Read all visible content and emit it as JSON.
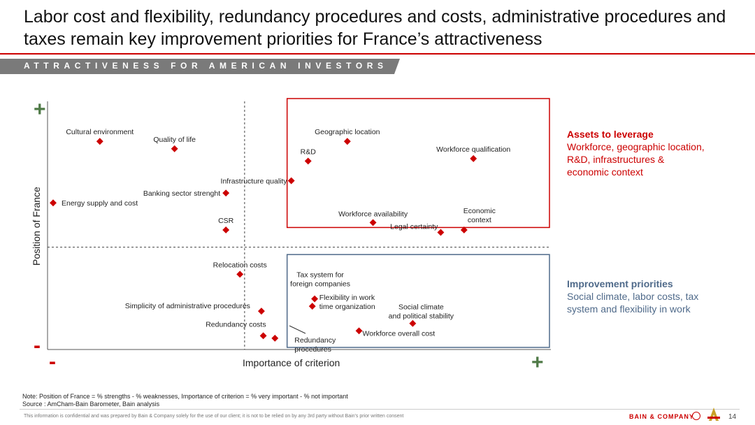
{
  "slide": {
    "title": "Labor cost and flexibility, redundancy procedures and costs, administrative procedures and taxes remain key improvement priorities for France’s attractiveness",
    "banner": "ATTRACTIVENESS FOR AMERICAN INVESTORS",
    "page_number": "14"
  },
  "axes": {
    "y_label": "Position of France",
    "x_label": "Importance of criterion",
    "y_plus": "+",
    "y_minus": "-",
    "x_minus": "-",
    "x_plus": "+"
  },
  "legend": {
    "assets_title": "Assets to leverage",
    "assets_body": "Workforce, geographic location, R&D, infrastructures & economic context",
    "improvement_title": "Improvement priorities",
    "improvement_body": "Social climate, labor costs, tax system and flexibility in work"
  },
  "notes": {
    "note": "Note: Position of France = % strengths - % weaknesses, Importance of criterion = % very important - % not important",
    "source": "Source : AmCham-Bain Barometer, Bain analysis"
  },
  "footer": {
    "confidential": "This information is confidential and was prepared by Bain & Company solely for the use of our client; it is not to be relied on by any 3rd party without Bain's prior written consent",
    "brand": "BAIN & COMPANY"
  },
  "colors": {
    "accent_red": "#cc0000",
    "assets_box": "#cc0000",
    "improvement_box": "#4f6a8a",
    "plus_green": "#4f7a47",
    "banner_gray": "#7a7a7a"
  },
  "chart_data": {
    "type": "scatter",
    "xlabel": "Importance of criterion",
    "ylabel": "Position of France",
    "xlim": [
      0,
      100
    ],
    "ylim": [
      0,
      100
    ],
    "x_divider": 41,
    "y_divider": 45,
    "grid": false,
    "quadrants": [
      {
        "name": "assets",
        "x": [
          51,
          100
        ],
        "y": [
          53,
          100
        ]
      },
      {
        "name": "improvement",
        "x": [
          51,
          100
        ],
        "y": [
          0,
          42
        ]
      }
    ],
    "points": [
      {
        "label": "Cultural environment",
        "x": 10,
        "y": 88
      },
      {
        "label": "Quality of life",
        "x": 26,
        "y": 85
      },
      {
        "label": "Geographic location",
        "x": 63,
        "y": 88
      },
      {
        "label": "R&D",
        "x": 54.6,
        "y": 80
      },
      {
        "label": "Workforce qualification",
        "x": 90,
        "y": 81
      },
      {
        "label": "Infrastructure quality",
        "x": 51,
        "y": 72
      },
      {
        "label": "Banking sector strenght",
        "x": 37,
        "y": 67
      },
      {
        "label": "Energy supply and cost",
        "x": 0,
        "y": 63
      },
      {
        "label": "Workforce availability",
        "x": 68.5,
        "y": 55
      },
      {
        "label": "CSR",
        "x": 37,
        "y": 52
      },
      {
        "label": "Legal certainty",
        "x": 83,
        "y": 51
      },
      {
        "label": "Economic context",
        "x": 88,
        "y": 52
      },
      {
        "label": "Relocation costs",
        "x": 40,
        "y": 34
      },
      {
        "label": "Tax system for foreign companies",
        "x": 56,
        "y": 24
      },
      {
        "label": "Flexibility in work time organization",
        "x": 55.5,
        "y": 21
      },
      {
        "label": "Simplicity of administrative procedures",
        "x": 44.6,
        "y": 19
      },
      {
        "label": "Social climate and political stability",
        "x": 77,
        "y": 14
      },
      {
        "label": "Workforce overall cost",
        "x": 65.5,
        "y": 11
      },
      {
        "label": "Redundancy costs",
        "x": 45,
        "y": 9
      },
      {
        "label": "Redundancy procedures",
        "x": 47.5,
        "y": 8
      }
    ]
  }
}
